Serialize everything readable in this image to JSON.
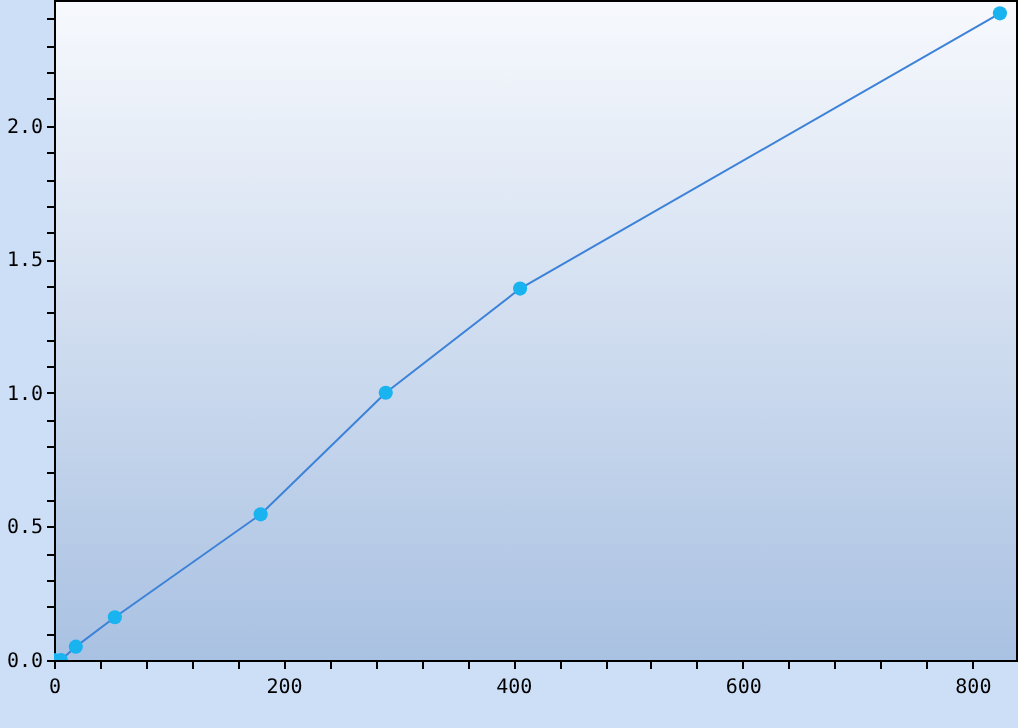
{
  "chart_data": {
    "type": "line",
    "x": [
      0,
      6,
      19,
      53,
      180,
      289,
      406,
      824
    ],
    "series": [
      {
        "color": "#3c82d8",
        "values": [
          0,
          0,
          0.05,
          0.16,
          0.545,
          1.0,
          1.39,
          2.42
        ]
      }
    ],
    "marker": "circle",
    "grid": false,
    "xlim": [
      0,
      838
    ],
    "ylim": [
      0,
      2.47
    ],
    "xticks": [
      0,
      {
        "value": 40,
        "label": null
      },
      {
        "value": 80,
        "label": null
      },
      {
        "value": 120,
        "label": null
      },
      {
        "value": 160,
        "label": null
      },
      200,
      {
        "value": 240,
        "label": null
      },
      {
        "value": 280,
        "label": null
      },
      {
        "value": 320,
        "label": null
      },
      {
        "value": 360,
        "label": null
      },
      400,
      {
        "value": 440,
        "label": null
      },
      {
        "value": 480,
        "label": null
      },
      {
        "value": 520,
        "label": null
      },
      {
        "value": 560,
        "label": null
      },
      600,
      {
        "value": 640,
        "label": null
      },
      {
        "value": 680,
        "label": null
      },
      {
        "value": 720,
        "label": null
      },
      {
        "value": 760,
        "label": null
      },
      800
    ],
    "yticks": [
      {
        "value": 0,
        "label": "0.0"
      },
      {
        "value": 0.1,
        "label": null
      },
      {
        "value": 0.2,
        "label": null
      },
      {
        "value": 0.3,
        "label": null
      },
      {
        "value": 0.4,
        "label": null
      },
      0.5,
      {
        "value": 0.6,
        "label": null
      },
      {
        "value": 0.7,
        "label": null
      },
      {
        "value": 0.8,
        "label": null
      },
      {
        "value": 0.9,
        "label": null
      },
      {
        "value": 1,
        "label": "1.0"
      },
      {
        "value": 1.1,
        "label": null
      },
      {
        "value": 1.2,
        "label": null
      },
      {
        "value": 1.3,
        "label": null
      },
      {
        "value": 1.4,
        "label": null
      },
      1.5,
      {
        "value": 1.6,
        "label": null
      },
      {
        "value": 1.7,
        "label": null
      },
      {
        "value": 1.8,
        "label": null
      },
      {
        "value": 1.9,
        "label": null
      },
      {
        "value": 2,
        "label": "2.0"
      },
      {
        "value": 2.1,
        "label": null
      },
      {
        "value": 2.2,
        "label": null
      },
      {
        "value": 2.3,
        "label": null
      },
      {
        "value": 2.4,
        "label": null
      }
    ]
  }
}
